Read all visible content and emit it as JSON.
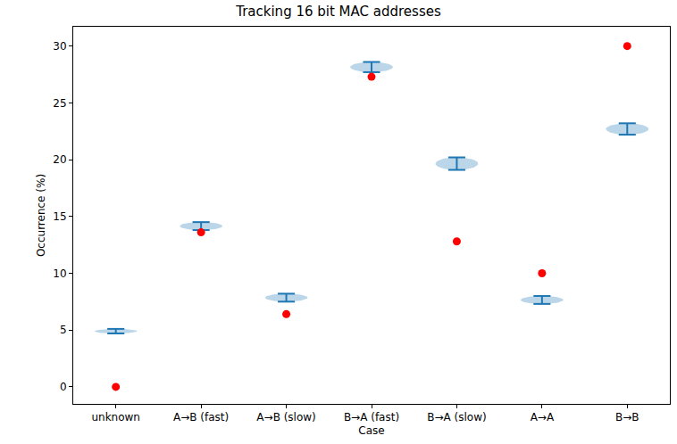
{
  "chart_data": {
    "type": "violin",
    "title": "Tracking 16 bit MAC addresses",
    "x_label": "Case",
    "y_label": "Occurrence (%)",
    "categories": [
      "unknown",
      "A→B (fast)",
      "A→B (slow)",
      "B→A (fast)",
      "B→A (slow)",
      "A→A",
      "B→B"
    ],
    "low": [
      4.7,
      13.8,
      7.5,
      27.7,
      19.1,
      7.3,
      22.2
    ],
    "high": [
      5.1,
      14.5,
      8.2,
      28.6,
      20.2,
      8.0,
      23.2
    ],
    "color": "#1f77b4",
    "values": [
      0,
      13.6,
      6.4,
      27.3,
      12.8,
      10,
      30
    ],
    "marker": "circle",
    "marker_color": "red",
    "ylim": [
      -1.5,
      31.7
    ],
    "yticks": [
      0,
      5,
      10,
      15,
      20,
      25,
      30
    ],
    "grid": false
  }
}
